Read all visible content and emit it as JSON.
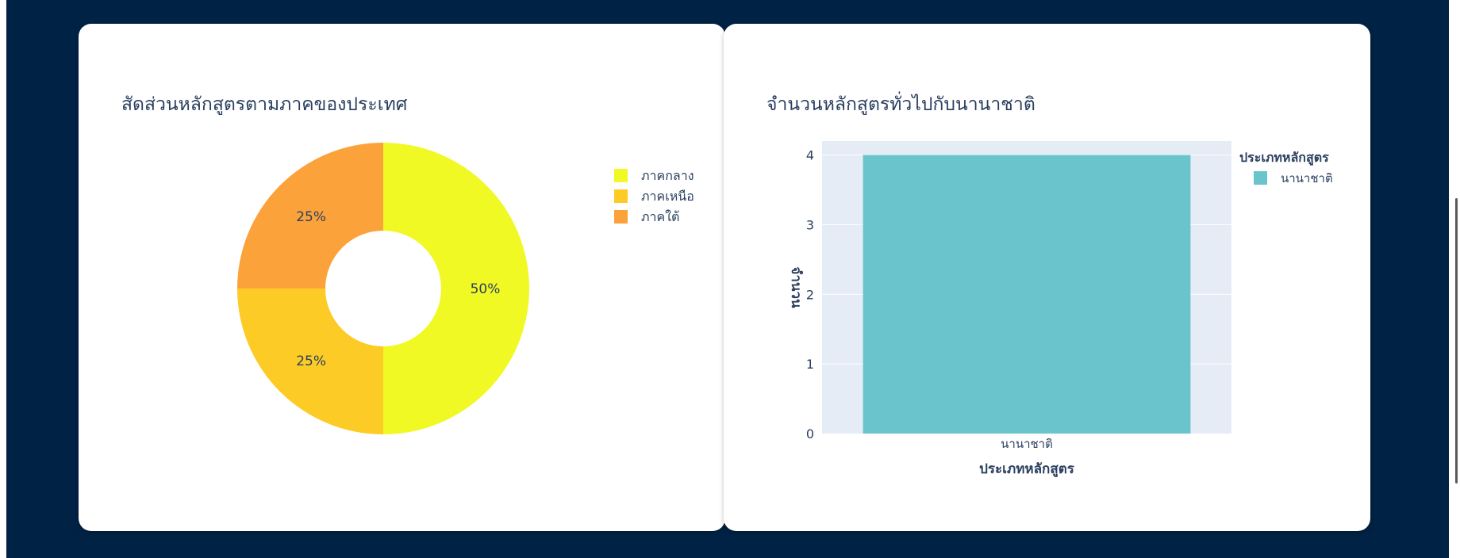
{
  "colors": {
    "page_background": "#002244",
    "card_background": "#ffffff",
    "text": "#2a3f5f",
    "plot_background": "#e5ecf6",
    "bar": "#69c5cb"
  },
  "chart_data": [
    {
      "type": "pie",
      "title": "สัดส่วนหลักสูตรตามภาคของประเทศ",
      "hole": true,
      "slices": [
        {
          "label": "ภาคกลาง",
          "value": 50,
          "text": "50%",
          "color": "#f0f923"
        },
        {
          "label": "ภาคเหนือ",
          "value": 25,
          "text": "25%",
          "color": "#fccb25"
        },
        {
          "label": "ภาคใต้",
          "value": 25,
          "text": "25%",
          "color": "#fca23b"
        }
      ],
      "legend": {
        "position": "top-right",
        "entries": [
          "ภาคกลาง",
          "ภาคเหนือ",
          "ภาคใต้"
        ]
      }
    },
    {
      "type": "bar",
      "title": "จำนวนหลักสูตรทั่วไปกับนานาชาติ",
      "categories": [
        "นานาชาติ"
      ],
      "series": [
        {
          "name": "นานาชาติ",
          "values": [
            4
          ],
          "color": "#69c5cb"
        }
      ],
      "xlabel": "ประเภทหลักสูตร",
      "ylabel": "จำนวน",
      "ylim": [
        0,
        4.2
      ],
      "yticks": [
        "0",
        "1",
        "2",
        "3",
        "4"
      ],
      "grid": true,
      "legend": {
        "position": "top-right",
        "title": "ประเภทหลักสูตร",
        "entries": [
          "นานาชาติ"
        ]
      }
    }
  ]
}
